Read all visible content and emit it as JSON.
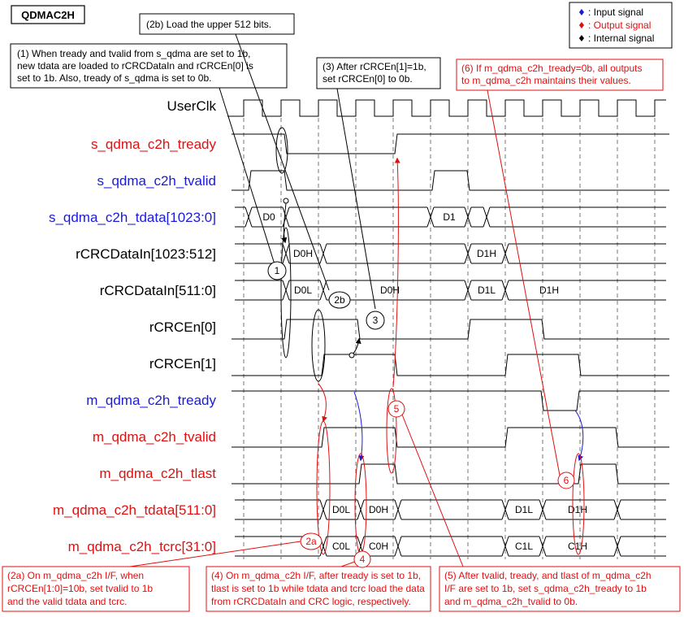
{
  "title": "QDMAC2H",
  "legend": [
    {
      "marker": "♦",
      "label": ": Input signal",
      "color": "#1a1adc"
    },
    {
      "marker": "♦",
      "label": ": Output signal",
      "color": "#e01010"
    },
    {
      "marker": "♦",
      "label": ": Internal signal",
      "color": "#000000"
    }
  ],
  "colors": {
    "input": "#1a1adc",
    "output": "#e01010",
    "internal": "#000000"
  },
  "signals": [
    {
      "name": "UserClk",
      "kind": "internal"
    },
    {
      "name": "s_qdma_c2h_tready",
      "kind": "output"
    },
    {
      "name": "s_qdma_c2h_tvalid",
      "kind": "input"
    },
    {
      "name": "s_qdma_c2h_tdata[1023:0]",
      "kind": "input"
    },
    {
      "name": "rCRCDataIn[1023:512]",
      "kind": "internal"
    },
    {
      "name": "rCRCDataIn[511:0]",
      "kind": "internal"
    },
    {
      "name": "rCRCEn[0]",
      "kind": "internal"
    },
    {
      "name": "rCRCEn[1]",
      "kind": "internal"
    },
    {
      "name": "m_qdma_c2h_tready",
      "kind": "input"
    },
    {
      "name": "m_qdma_c2h_tvalid",
      "kind": "output"
    },
    {
      "name": "m_qdma_c2h_tlast",
      "kind": "output"
    },
    {
      "name": "m_qdma_c2h_tdata[511:0]",
      "kind": "output"
    },
    {
      "name": "m_qdma_c2h_tcrc[31:0]",
      "kind": "output"
    }
  ],
  "bus_values": {
    "s_tdata": [
      "D0",
      "D1"
    ],
    "crc_hi": [
      "D0H",
      "D1H"
    ],
    "crc_lo": [
      "D0L",
      "D0H",
      "D1L",
      "D1H"
    ],
    "m_tdata": [
      "D0L",
      "D0H",
      "D1L",
      "D1H"
    ],
    "m_tcrc": [
      "C0L",
      "C0H",
      "C1L",
      "C1H"
    ]
  },
  "markers": [
    "1",
    "2b",
    "3",
    "5",
    "6",
    "2a",
    "4"
  ],
  "notes": {
    "n1": [
      "(1) When tready and tvalid from s_qdma are set to 1b,",
      "new tdata are loaded to rCRCDataIn and rCRCEn[0] is",
      "set to 1b. Also, tready of s_qdma is set to 0b."
    ],
    "n2b": [
      "(2b) Load the upper 512 bits."
    ],
    "n3": [
      "(3) After rCRCEn[1]=1b,",
      "set rCRCEn[0] to 0b."
    ],
    "n6": [
      "(6) If m_qdma_c2h_tready=0b, all outputs",
      "to m_qdma_c2h maintains their values."
    ],
    "n2a": [
      "(2a) On m_qdma_c2h I/F, when",
      "rCRCEn[1:0]=10b, set tvalid to 1b",
      "and the valid tdata and tcrc."
    ],
    "n4": [
      "(4) On m_qdma_c2h I/F, after tready is set to 1b,",
      "tlast is set to 1b while tdata and tcrc load the data",
      "from rCRCDataIn and CRC logic, respectively."
    ],
    "n5": [
      "(5) After tvalid, tready, and tlast of m_qdma_c2h",
      "I/F are set to 1b, set s_qdma_c2h_tready to 1b",
      "and m_qdma_c2h_tvalid to 0b."
    ]
  }
}
